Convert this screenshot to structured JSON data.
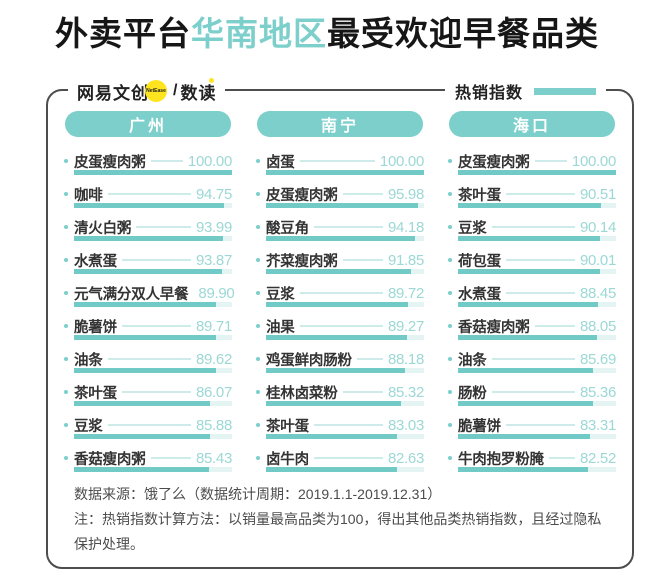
{
  "title": {
    "prefix": "外卖平台",
    "highlight": "华南地区",
    "suffix": "最受欢迎早餐品类"
  },
  "header": {
    "brand": {
      "name": "网易文创",
      "badge": "NetEase",
      "divider": "/",
      "sub": "数读"
    },
    "legend": {
      "label": "热销指数"
    }
  },
  "colors": {
    "teal": "#7CCFCB",
    "bar_fill": "#72CAC6",
    "bar_track": "#E4F4F2",
    "value_text": "#9CD8D5",
    "leader_line": "#CDEBE9",
    "badge_yellow": "#FFE41F",
    "border_gray": "#4d4d4d"
  },
  "columns": [
    {
      "city": "广州",
      "items": [
        {
          "label": "皮蛋瘦肉粥",
          "value": "100.00"
        },
        {
          "label": "咖啡",
          "value": "94.75"
        },
        {
          "label": "清火白粥",
          "value": "93.99"
        },
        {
          "label": "水煮蛋",
          "value": "93.87"
        },
        {
          "label": "元气满分双人早餐",
          "value": "89.90"
        },
        {
          "label": "脆薯饼",
          "value": "89.71"
        },
        {
          "label": "油条",
          "value": "89.62"
        },
        {
          "label": "茶叶蛋",
          "value": "86.07"
        },
        {
          "label": "豆浆",
          "value": "85.88"
        },
        {
          "label": "香菇瘦肉粥",
          "value": "85.43"
        }
      ]
    },
    {
      "city": "南宁",
      "items": [
        {
          "label": "卤蛋",
          "value": "100.00"
        },
        {
          "label": "皮蛋瘦肉粥",
          "value": "95.98"
        },
        {
          "label": "酸豆角",
          "value": "94.18"
        },
        {
          "label": "芥菜瘦肉粥",
          "value": "91.85"
        },
        {
          "label": "豆浆",
          "value": "89.72"
        },
        {
          "label": "油果",
          "value": "89.27"
        },
        {
          "label": "鸡蛋鲜肉肠粉",
          "value": "88.18"
        },
        {
          "label": "桂林卤菜粉",
          "value": "85.32"
        },
        {
          "label": "茶叶蛋",
          "value": "83.03"
        },
        {
          "label": "卤牛肉",
          "value": "82.63"
        }
      ]
    },
    {
      "city": "海口",
      "items": [
        {
          "label": "皮蛋瘦肉粥",
          "value": "100.00"
        },
        {
          "label": "茶叶蛋",
          "value": "90.51"
        },
        {
          "label": "豆浆",
          "value": "90.14"
        },
        {
          "label": "荷包蛋",
          "value": "90.01"
        },
        {
          "label": "水煮蛋",
          "value": "88.45"
        },
        {
          "label": "香菇瘦肉粥",
          "value": "88.05"
        },
        {
          "label": "油条",
          "value": "85.69"
        },
        {
          "label": "肠粉",
          "value": "85.36"
        },
        {
          "label": "脆薯饼",
          "value": "83.31"
        },
        {
          "label": "牛肉抱罗粉腌",
          "value": "82.52"
        }
      ]
    }
  ],
  "footer": {
    "line1": "数据来源：饿了么（数据统计周期：2019.1.1-2019.12.31）",
    "line2": "注：热销指数计算方法：以销量最高品类为100，得出其他品类热销指数，且经过隐私保护处理。"
  },
  "chart_data": [
    {
      "type": "bar",
      "title": "广州",
      "orientation": "horizontal",
      "categories": [
        "皮蛋瘦肉粥",
        "咖啡",
        "清火白粥",
        "水煮蛋",
        "元气满分双人早餐",
        "脆薯饼",
        "油条",
        "茶叶蛋",
        "豆浆",
        "香菇瘦肉粥"
      ],
      "values": [
        100.0,
        94.75,
        93.99,
        93.87,
        89.9,
        89.71,
        89.62,
        86.07,
        85.88,
        85.43
      ],
      "xlabel": "热销指数",
      "ylabel": "",
      "xlim": [
        0,
        100
      ],
      "grid": false,
      "legend_position": "top-right"
    },
    {
      "type": "bar",
      "title": "南宁",
      "orientation": "horizontal",
      "categories": [
        "卤蛋",
        "皮蛋瘦肉粥",
        "酸豆角",
        "芥菜瘦肉粥",
        "豆浆",
        "油果",
        "鸡蛋鲜肉肠粉",
        "桂林卤菜粉",
        "茶叶蛋",
        "卤牛肉"
      ],
      "values": [
        100.0,
        95.98,
        94.18,
        91.85,
        89.72,
        89.27,
        88.18,
        85.32,
        83.03,
        82.63
      ],
      "xlabel": "热销指数",
      "ylabel": "",
      "xlim": [
        0,
        100
      ],
      "grid": false,
      "legend_position": "top-right"
    },
    {
      "type": "bar",
      "title": "海口",
      "orientation": "horizontal",
      "categories": [
        "皮蛋瘦肉粥",
        "茶叶蛋",
        "豆浆",
        "荷包蛋",
        "水煮蛋",
        "香菇瘦肉粥",
        "油条",
        "肠粉",
        "脆薯饼",
        "牛肉抱罗粉腌"
      ],
      "values": [
        100.0,
        90.51,
        90.14,
        90.01,
        88.45,
        88.05,
        85.69,
        85.36,
        83.31,
        82.52
      ],
      "xlabel": "热销指数",
      "ylabel": "",
      "xlim": [
        0,
        100
      ],
      "grid": false,
      "legend_position": "top-right"
    }
  ]
}
